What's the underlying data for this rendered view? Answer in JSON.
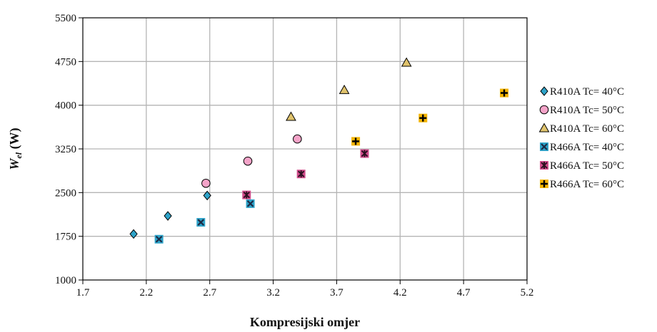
{
  "chart_data": {
    "type": "scatter",
    "xlabel": "Kompresijski omjer",
    "ylabel_main": "W",
    "ylabel_sub": "el",
    "ylabel_unit": " (W)",
    "xlim": [
      1.7,
      5.2
    ],
    "ylim": [
      1000,
      5500
    ],
    "x_ticks": [
      "1.7",
      "2.2",
      "2.7",
      "3.2",
      "3.7",
      "4.2",
      "4.7",
      "5.2"
    ],
    "y_ticks": [
      "1000",
      "1750",
      "2500",
      "3250",
      "4000",
      "4750",
      "5500"
    ],
    "grid": true,
    "legend_position": "right",
    "series": [
      {
        "name": "R410A Tc= 40°C",
        "marker": "diamond",
        "color": "#2ea3c9",
        "x": [
          2.1,
          2.37,
          2.68
        ],
        "y": [
          1790,
          2100,
          2450
        ]
      },
      {
        "name": "R410A Tc= 50°C",
        "marker": "circle",
        "color": "#f4a3c8",
        "x": [
          2.67,
          3.0,
          3.39
        ],
        "y": [
          2660,
          3040,
          3420
        ]
      },
      {
        "name": "R410A Tc= 60°C",
        "marker": "triangle",
        "color": "#e0c36c",
        "x": [
          3.34,
          3.76,
          4.25
        ],
        "y": [
          3800,
          4260,
          4730
        ]
      },
      {
        "name": "R466A Tc= 40°C",
        "marker": "x-box",
        "color": "#2ea3c9",
        "x": [
          2.3,
          2.63,
          3.02
        ],
        "y": [
          1700,
          1990,
          2310
        ]
      },
      {
        "name": "R466A Tc= 50°C",
        "marker": "asterisk",
        "color": "#d14d8c",
        "x": [
          2.99,
          3.42,
          3.92
        ],
        "y": [
          2460,
          2820,
          3170
        ]
      },
      {
        "name": "R466A Tc= 60°C",
        "marker": "plus-box",
        "color": "#f4b400",
        "x": [
          3.85,
          4.38,
          5.02
        ],
        "y": [
          3380,
          3780,
          4210
        ]
      }
    ]
  }
}
